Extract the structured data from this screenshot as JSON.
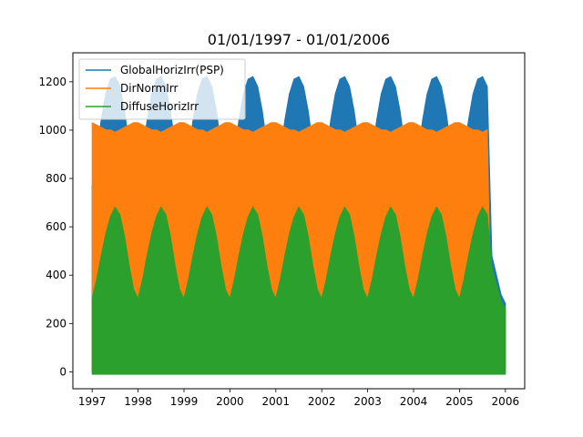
{
  "chart_data": {
    "type": "line",
    "title": "01/01/1997 - 01/01/2006",
    "xlabel": "",
    "ylabel": "",
    "xlim": [
      1996.58,
      2006.42
    ],
    "ylim": [
      -70,
      1320
    ],
    "grid": false,
    "legend_position": "top-left",
    "x_ticks": [
      {
        "value": 1997,
        "label": "1997"
      },
      {
        "value": 1998,
        "label": "1998"
      },
      {
        "value": 1999,
        "label": "1999"
      },
      {
        "value": 2000,
        "label": "2000"
      },
      {
        "value": 2001,
        "label": "2001"
      },
      {
        "value": 2002,
        "label": "2002"
      },
      {
        "value": 2003,
        "label": "2003"
      },
      {
        "value": 2004,
        "label": "2004"
      },
      {
        "value": 2005,
        "label": "2005"
      },
      {
        "value": 2006,
        "label": "2006"
      }
    ],
    "y_ticks": [
      {
        "value": 0,
        "label": "0"
      },
      {
        "value": 200,
        "label": "200"
      },
      {
        "value": 400,
        "label": "400"
      },
      {
        "value": 600,
        "label": "600"
      },
      {
        "value": 800,
        "label": "800"
      },
      {
        "value": 1000,
        "label": "1000"
      },
      {
        "value": 1200,
        "label": "1200"
      }
    ],
    "series": [
      {
        "name": "GlobalHorizIrr(PSP)",
        "color": "#1f77b4",
        "x": [
          1997.0,
          1997.1,
          1997.2,
          1997.3,
          1997.4,
          1997.5,
          1997.6,
          1997.7,
          1997.8,
          1997.9,
          1998.0,
          1998.1,
          1998.2,
          1998.3,
          1998.4,
          1998.5,
          1998.6,
          1998.7,
          1998.8,
          1998.9,
          1999.0,
          1999.1,
          1999.2,
          1999.3,
          1999.4,
          1999.5,
          1999.6,
          1999.7,
          1999.8,
          1999.9,
          2000.0,
          2000.1,
          2000.2,
          2000.3,
          2000.4,
          2000.5,
          2000.6,
          2000.7,
          2000.8,
          2000.9,
          2001.0,
          2001.1,
          2001.2,
          2001.3,
          2001.4,
          2001.5,
          2001.6,
          2001.7,
          2001.8,
          2001.9,
          2002.0,
          2002.1,
          2002.2,
          2002.3,
          2002.4,
          2002.5,
          2002.6,
          2002.7,
          2002.8,
          2002.9,
          2003.0,
          2003.1,
          2003.2,
          2003.3,
          2003.4,
          2003.5,
          2003.6,
          2003.7,
          2003.8,
          2003.9,
          2004.0,
          2004.1,
          2004.2,
          2004.3,
          2004.4,
          2004.5,
          2004.6,
          2004.7,
          2004.8,
          2004.9,
          2005.0,
          2005.1,
          2005.2,
          2005.3,
          2005.4,
          2005.5,
          2005.6,
          2005.7,
          2005.8,
          2005.9,
          2006.0
        ],
        "upper": [
          760,
          900,
          1040,
          1150,
          1210,
          1220,
          1180,
          1080,
          940,
          800,
          760,
          900,
          1040,
          1150,
          1210,
          1220,
          1180,
          1080,
          940,
          800,
          760,
          900,
          1040,
          1150,
          1210,
          1220,
          1180,
          1080,
          940,
          800,
          760,
          900,
          1040,
          1150,
          1210,
          1220,
          1180,
          1080,
          940,
          800,
          760,
          900,
          1040,
          1150,
          1210,
          1220,
          1180,
          1080,
          940,
          800,
          760,
          900,
          1040,
          1150,
          1210,
          1220,
          1180,
          1080,
          940,
          800,
          760,
          900,
          1040,
          1150,
          1210,
          1220,
          1180,
          1080,
          940,
          800,
          760,
          900,
          1040,
          1150,
          1210,
          1220,
          1180,
          1080,
          940,
          800,
          760,
          900,
          1040,
          1150,
          1210,
          1220,
          1180,
          480,
          400,
          320,
          280
        ],
        "lower": [
          0,
          0,
          0,
          0,
          0,
          0,
          0,
          0,
          0,
          0,
          0,
          0,
          0,
          0,
          0,
          0,
          0,
          0,
          0,
          0,
          0,
          0,
          0,
          0,
          0,
          0,
          0,
          0,
          0,
          0,
          0,
          0,
          0,
          0,
          0,
          0,
          0,
          0,
          0,
          0,
          0,
          0,
          0,
          0,
          0,
          0,
          0,
          0,
          0,
          0,
          0,
          0,
          0,
          0,
          0,
          0,
          0,
          0,
          0,
          0,
          0,
          0,
          0,
          0,
          0,
          0,
          0,
          0,
          0,
          0,
          0,
          0,
          0,
          0,
          0,
          0,
          0,
          0,
          0,
          0,
          0,
          0,
          0,
          0,
          0,
          0,
          0,
          0,
          0,
          0,
          0
        ]
      },
      {
        "name": "DirNormIrr",
        "color": "#ff7f0e",
        "x": [
          1997.0,
          1997.1,
          1997.2,
          1997.3,
          1997.4,
          1997.5,
          1997.6,
          1997.7,
          1997.8,
          1997.9,
          1998.0,
          1998.1,
          1998.2,
          1998.3,
          1998.4,
          1998.5,
          1998.6,
          1998.7,
          1998.8,
          1998.9,
          1999.0,
          1999.1,
          1999.2,
          1999.3,
          1999.4,
          1999.5,
          1999.6,
          1999.7,
          1999.8,
          1999.9,
          2000.0,
          2000.1,
          2000.2,
          2000.3,
          2000.4,
          2000.5,
          2000.6,
          2000.7,
          2000.8,
          2000.9,
          2001.0,
          2001.1,
          2001.2,
          2001.3,
          2001.4,
          2001.5,
          2001.6,
          2001.7,
          2001.8,
          2001.9,
          2002.0,
          2002.1,
          2002.2,
          2002.3,
          2002.4,
          2002.5,
          2002.6,
          2002.7,
          2002.8,
          2002.9,
          2003.0,
          2003.1,
          2003.2,
          2003.3,
          2003.4,
          2003.5,
          2003.6,
          2003.7,
          2003.8,
          2003.9,
          2004.0,
          2004.1,
          2004.2,
          2004.3,
          2004.4,
          2004.5,
          2004.6,
          2004.7,
          2004.8,
          2004.9,
          2005.0,
          2005.1,
          2005.2,
          2005.3,
          2005.4,
          2005.5,
          2005.6,
          2005.7,
          2005.8,
          2005.9,
          2006.0
        ],
        "upper": [
          1030,
          1020,
          1010,
          1000,
          1000,
          990,
          1000,
          1010,
          1020,
          1030,
          1030,
          1020,
          1010,
          1000,
          1000,
          990,
          1000,
          1010,
          1020,
          1030,
          1030,
          1020,
          1010,
          1000,
          1000,
          990,
          1000,
          1010,
          1020,
          1030,
          1030,
          1020,
          1010,
          1000,
          1000,
          990,
          1000,
          1010,
          1020,
          1030,
          1030,
          1020,
          1010,
          1000,
          1000,
          990,
          1000,
          1010,
          1020,
          1030,
          1030,
          1020,
          1010,
          1000,
          1000,
          990,
          1000,
          1010,
          1020,
          1030,
          1030,
          1020,
          1010,
          1000,
          1000,
          990,
          1000,
          1010,
          1020,
          1030,
          1030,
          1020,
          1010,
          1000,
          1000,
          990,
          1000,
          1010,
          1020,
          1030,
          1030,
          1020,
          1010,
          1000,
          1000,
          990,
          1000,
          0,
          0,
          0,
          0
        ],
        "lower": [
          0,
          0,
          0,
          0,
          0,
          0,
          0,
          0,
          0,
          0,
          0,
          0,
          0,
          0,
          0,
          0,
          0,
          0,
          0,
          0,
          0,
          0,
          0,
          0,
          0,
          0,
          0,
          0,
          0,
          0,
          0,
          0,
          0,
          0,
          0,
          0,
          0,
          0,
          0,
          0,
          0,
          0,
          0,
          0,
          0,
          0,
          0,
          0,
          0,
          0,
          0,
          0,
          0,
          0,
          0,
          0,
          0,
          0,
          0,
          0,
          0,
          0,
          0,
          0,
          0,
          0,
          0,
          0,
          0,
          0,
          0,
          0,
          0,
          0,
          0,
          0,
          0,
          0,
          0,
          0,
          0,
          0,
          0,
          0,
          0,
          0,
          0,
          0,
          0,
          0,
          0
        ]
      },
      {
        "name": "DiffuseHorizIrr",
        "color": "#2ca02c",
        "x": [
          1997.0,
          1997.1,
          1997.2,
          1997.3,
          1997.4,
          1997.5,
          1997.6,
          1997.7,
          1997.8,
          1997.9,
          1998.0,
          1998.1,
          1998.2,
          1998.3,
          1998.4,
          1998.5,
          1998.6,
          1998.7,
          1998.8,
          1998.9,
          1999.0,
          1999.1,
          1999.2,
          1999.3,
          1999.4,
          1999.5,
          1999.6,
          1999.7,
          1999.8,
          1999.9,
          2000.0,
          2000.1,
          2000.2,
          2000.3,
          2000.4,
          2000.5,
          2000.6,
          2000.7,
          2000.8,
          2000.9,
          2001.0,
          2001.1,
          2001.2,
          2001.3,
          2001.4,
          2001.5,
          2001.6,
          2001.7,
          2001.8,
          2001.9,
          2002.0,
          2002.1,
          2002.2,
          2002.3,
          2002.4,
          2002.5,
          2002.6,
          2002.7,
          2002.8,
          2002.9,
          2003.0,
          2003.1,
          2003.2,
          2003.3,
          2003.4,
          2003.5,
          2003.6,
          2003.7,
          2003.8,
          2003.9,
          2004.0,
          2004.1,
          2004.2,
          2004.3,
          2004.4,
          2004.5,
          2004.6,
          2004.7,
          2004.8,
          2004.9,
          2005.0,
          2005.1,
          2005.2,
          2005.3,
          2005.4,
          2005.5,
          2005.6,
          2005.7,
          2005.8,
          2005.9,
          2006.0
        ],
        "upper": [
          300,
          380,
          480,
          570,
          640,
          680,
          650,
          560,
          440,
          340,
          300,
          380,
          480,
          570,
          640,
          680,
          650,
          560,
          440,
          340,
          300,
          380,
          480,
          570,
          640,
          680,
          650,
          560,
          440,
          340,
          300,
          380,
          480,
          570,
          640,
          680,
          650,
          560,
          440,
          340,
          300,
          380,
          480,
          570,
          640,
          680,
          650,
          560,
          440,
          340,
          300,
          380,
          480,
          570,
          640,
          680,
          650,
          560,
          440,
          340,
          300,
          380,
          480,
          570,
          640,
          680,
          650,
          560,
          440,
          340,
          300,
          380,
          480,
          570,
          640,
          680,
          650,
          560,
          440,
          340,
          300,
          380,
          480,
          570,
          640,
          680,
          650,
          430,
          360,
          290,
          260
        ],
        "lower": [
          -10,
          -10,
          -10,
          -10,
          -10,
          -10,
          -10,
          -10,
          -10,
          -10,
          -10,
          -10,
          -10,
          -10,
          -10,
          -10,
          -10,
          -10,
          -10,
          -10,
          -10,
          -10,
          -10,
          -10,
          -10,
          -10,
          -10,
          -10,
          -10,
          -10,
          -10,
          -10,
          -10,
          -10,
          -10,
          -10,
          -10,
          -10,
          -10,
          -10,
          -10,
          -10,
          -10,
          -10,
          -10,
          -10,
          -10,
          -10,
          -10,
          -10,
          -10,
          -10,
          -10,
          -10,
          -10,
          -10,
          -10,
          -10,
          -10,
          -10,
          -10,
          -10,
          -10,
          -10,
          -10,
          -10,
          -10,
          -10,
          -10,
          -10,
          -10,
          -10,
          -10,
          -10,
          -10,
          -10,
          -10,
          -10,
          -10,
          -10,
          -10,
          -10,
          -10,
          -10,
          -10,
          -10,
          -10,
          -10,
          -10,
          -10,
          -10
        ]
      }
    ]
  }
}
